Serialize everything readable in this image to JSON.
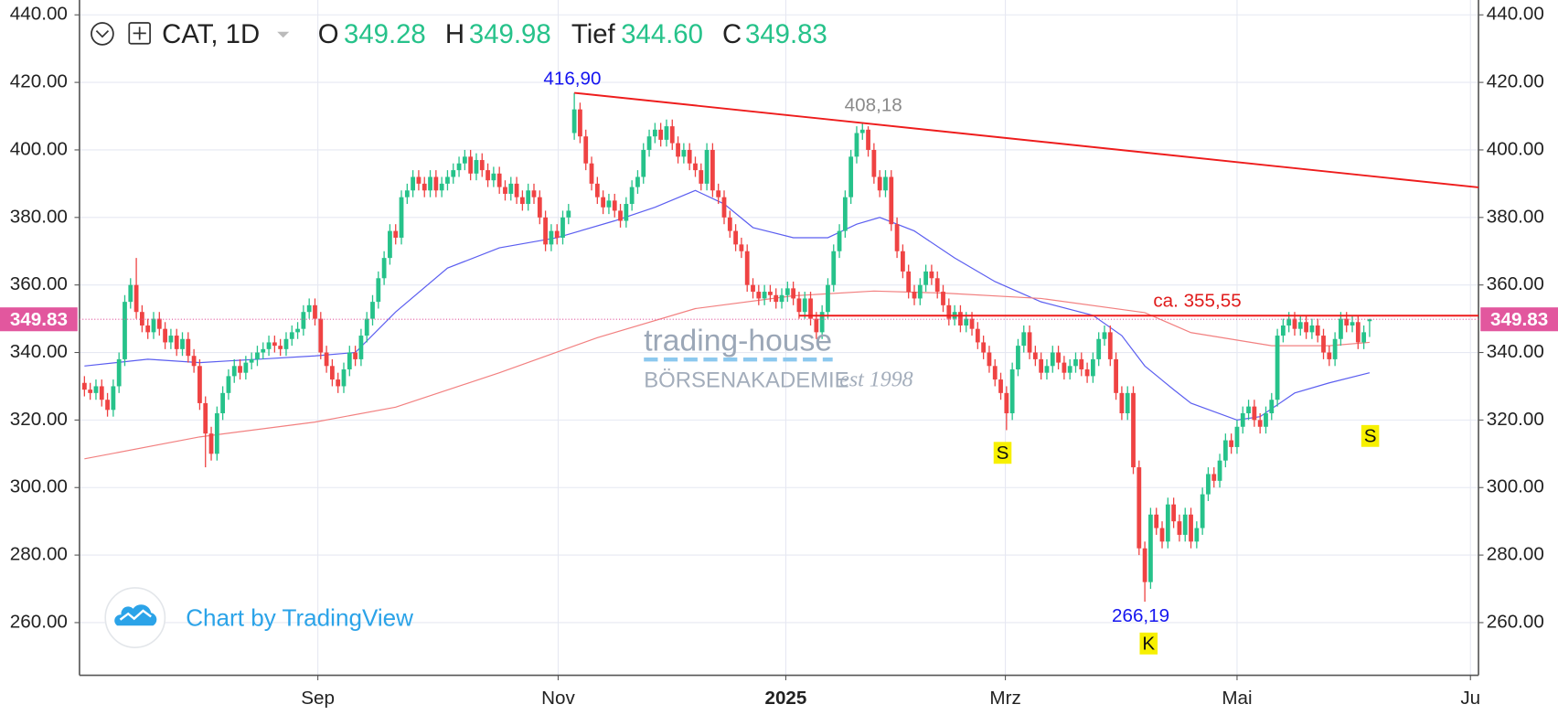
{
  "header": {
    "symbol": "CAT, 1D",
    "open_label": "O",
    "open": "349.28",
    "high_label": "H",
    "high": "349.98",
    "low_label": "Tief",
    "low": "344.60",
    "close_label": "C",
    "close": "349.83"
  },
  "watermark": {
    "brand": "trading-house",
    "academy": "BÖRSENAKADEMIE",
    "since": "est 1998"
  },
  "credit": "Chart by TradingView",
  "chart_data": {
    "type": "candlestick",
    "up_color": "#26c28a",
    "down_color": "#ef4343",
    "xlim": [
      -0.86,
      241.9
    ],
    "xticks": [
      {
        "value": 40.5,
        "label": "Sep"
      },
      {
        "value": 82.2,
        "label": "Nov"
      },
      {
        "value": 121.7,
        "label": "2025"
      },
      {
        "value": 159.8,
        "label": "Mrz"
      },
      {
        "value": 200,
        "label": "Mai"
      },
      {
        "value": 240.5,
        "label": "Ju"
      }
    ],
    "ylim": [
      244.4,
      444.4
    ],
    "yticks": [
      {
        "value": 260,
        "label": "260.00"
      },
      {
        "value": 280,
        "label": "280.00"
      },
      {
        "value": 300,
        "label": "300.00"
      },
      {
        "value": 320,
        "label": "320.00"
      },
      {
        "value": 340,
        "label": "340.00"
      },
      {
        "value": 360,
        "label": "360.00"
      },
      {
        "value": 380,
        "label": "380.00"
      },
      {
        "value": 400,
        "label": "400.00"
      },
      {
        "value": 420,
        "label": "420.00"
      },
      {
        "value": 440,
        "label": "440.00"
      }
    ],
    "grid": true,
    "open": [
      331,
      329,
      328,
      330,
      326,
      323,
      330,
      338,
      355,
      360,
      352,
      348,
      346,
      350,
      347,
      343,
      345,
      341,
      344,
      339,
      336,
      325,
      316,
      310,
      322,
      328,
      333,
      336,
      334,
      337,
      338,
      340,
      341,
      343,
      342,
      341,
      344,
      346,
      347,
      352,
      354,
      350,
      340,
      336,
      332,
      330,
      335,
      340,
      338,
      345,
      350,
      355,
      362,
      368,
      376,
      374,
      386,
      388,
      392,
      390,
      388,
      392,
      388,
      390,
      392,
      394,
      396,
      398,
      393,
      397,
      394,
      391,
      393,
      389,
      387,
      390,
      386,
      384,
      388,
      386,
      380,
      372,
      376,
      374,
      380,
      405,
      412,
      404,
      396,
      390,
      386,
      383,
      385,
      382,
      379,
      384,
      389,
      392,
      400,
      404,
      406,
      403,
      407,
      402,
      398,
      400,
      396,
      394,
      390,
      400,
      388,
      386,
      380,
      376,
      372,
      370,
      360,
      358,
      356,
      358,
      357,
      355,
      357,
      359,
      356,
      352,
      356,
      350,
      346,
      352,
      360,
      370,
      376,
      386,
      398,
      405,
      406,
      400,
      392,
      388,
      392,
      378,
      370,
      364,
      358,
      356,
      360,
      364,
      362,
      358,
      354,
      350,
      352,
      348,
      350,
      347,
      343,
      340,
      336,
      332,
      328,
      322,
      335,
      342,
      346,
      340,
      338,
      334,
      336,
      340,
      337,
      334,
      336,
      338,
      335,
      333,
      338,
      344,
      346,
      338,
      328,
      322,
      328,
      306,
      282,
      272,
      292,
      288,
      284,
      295,
      290,
      286,
      292,
      284,
      288,
      298,
      304,
      302,
      308,
      314,
      312,
      318,
      322,
      324,
      320,
      318,
      322,
      326,
      345,
      348,
      350,
      347,
      349,
      346,
      348,
      345,
      340,
      338,
      344,
      350,
      348,
      349,
      343,
      349.28
    ],
    "high": [
      333,
      331,
      332,
      332,
      328,
      332,
      340,
      357,
      362,
      368,
      354,
      350,
      352,
      352,
      349,
      347,
      347,
      346,
      346,
      341,
      338,
      327,
      318,
      324,
      330,
      335,
      338,
      338,
      339,
      340,
      342,
      343,
      345,
      345,
      344,
      346,
      348,
      349,
      354,
      356,
      356,
      352,
      342,
      338,
      334,
      337,
      342,
      342,
      347,
      352,
      357,
      364,
      370,
      378,
      378,
      388,
      390,
      394,
      394,
      392,
      394,
      394,
      392,
      394,
      396,
      398,
      400,
      400,
      399,
      399,
      396,
      395,
      395,
      391,
      392,
      392,
      388,
      390,
      390,
      388,
      382,
      378,
      378,
      382,
      384,
      416.9,
      414,
      406,
      398,
      392,
      388,
      387,
      387,
      384,
      386,
      391,
      394,
      402,
      406,
      408,
      408,
      409,
      409,
      404,
      402,
      402,
      398,
      396,
      402,
      402,
      390,
      388,
      382,
      378,
      374,
      372,
      362,
      360,
      360,
      360,
      359,
      359,
      361,
      361,
      358,
      358,
      358,
      352,
      354,
      362,
      372,
      378,
      388,
      400,
      407,
      408.18,
      407,
      402,
      394,
      394,
      394,
      380,
      372,
      366,
      360,
      362,
      366,
      366,
      364,
      360,
      356,
      354,
      354,
      352,
      352,
      349,
      345,
      342,
      338,
      334,
      330,
      337,
      344,
      348,
      348,
      342,
      340,
      338,
      342,
      342,
      339,
      338,
      340,
      340,
      337,
      340,
      346,
      348,
      348,
      340,
      330,
      330,
      330,
      308,
      284,
      294,
      294,
      290,
      297,
      297,
      292,
      294,
      294,
      290,
      300,
      306,
      306,
      310,
      316,
      316,
      320,
      324,
      326,
      326,
      322,
      324,
      328,
      347,
      350,
      352,
      352,
      351,
      351,
      350,
      350,
      347,
      342,
      346,
      352,
      352,
      351,
      351,
      348,
      349.98
    ],
    "low": [
      327,
      326,
      326,
      324,
      321,
      321,
      328,
      336,
      353,
      350,
      346,
      344,
      344,
      345,
      341,
      341,
      339,
      339,
      337,
      334,
      323,
      306,
      308,
      308,
      320,
      326,
      331,
      332,
      332,
      335,
      336,
      338,
      339,
      340,
      339,
      339,
      342,
      344,
      345,
      350,
      348,
      338,
      334,
      330,
      328,
      328,
      333,
      336,
      336,
      343,
      348,
      353,
      360,
      366,
      372,
      372,
      384,
      386,
      388,
      386,
      386,
      386,
      386,
      388,
      390,
      392,
      394,
      391,
      391,
      392,
      389,
      389,
      387,
      385,
      385,
      384,
      382,
      382,
      384,
      378,
      370,
      370,
      372,
      372,
      378,
      403,
      402,
      394,
      388,
      384,
      381,
      381,
      380,
      377,
      377,
      382,
      387,
      390,
      398,
      402,
      401,
      401,
      400,
      396,
      396,
      394,
      392,
      388,
      388,
      386,
      384,
      378,
      374,
      370,
      368,
      358,
      356,
      354,
      354,
      355,
      353,
      353,
      355,
      354,
      350,
      350,
      348,
      344,
      344,
      350,
      358,
      368,
      374,
      384,
      396,
      403,
      398,
      390,
      386,
      386,
      376,
      368,
      362,
      356,
      354,
      354,
      358,
      360,
      356,
      352,
      348,
      348,
      346,
      346,
      345,
      341,
      338,
      334,
      330,
      326,
      317,
      320,
      333,
      340,
      338,
      336,
      332,
      332,
      334,
      335,
      332,
      332,
      334,
      333,
      331,
      331,
      336,
      342,
      336,
      326,
      320,
      320,
      304,
      280,
      266.19,
      270,
      286,
      282,
      282,
      288,
      284,
      284,
      282,
      282,
      286,
      296,
      300,
      300,
      306,
      310,
      310,
      316,
      320,
      318,
      316,
      316,
      320,
      324,
      343,
      346,
      345,
      345,
      344,
      344,
      343,
      338,
      336,
      336,
      342,
      346,
      346,
      341,
      341,
      344.6
    ],
    "close": [
      329,
      328,
      330,
      326,
      323,
      330,
      338,
      355,
      360,
      352,
      348,
      346,
      350,
      347,
      343,
      345,
      341,
      344,
      339,
      336,
      325,
      316,
      310,
      322,
      328,
      333,
      336,
      334,
      337,
      338,
      340,
      341,
      343,
      342,
      341,
      344,
      346,
      347,
      352,
      354,
      350,
      340,
      336,
      332,
      330,
      335,
      340,
      338,
      345,
      350,
      355,
      362,
      368,
      376,
      374,
      386,
      388,
      392,
      390,
      388,
      392,
      388,
      390,
      392,
      394,
      396,
      398,
      393,
      397,
      394,
      391,
      393,
      389,
      387,
      390,
      386,
      384,
      388,
      386,
      380,
      372,
      376,
      374,
      380,
      382,
      412,
      404,
      396,
      390,
      386,
      383,
      385,
      382,
      379,
      384,
      389,
      392,
      400,
      404,
      406,
      403,
      407,
      402,
      398,
      400,
      396,
      394,
      390,
      400,
      388,
      386,
      380,
      376,
      372,
      370,
      360,
      358,
      356,
      358,
      357,
      355,
      357,
      359,
      356,
      352,
      356,
      350,
      346,
      352,
      360,
      370,
      376,
      386,
      398,
      405,
      406,
      400,
      392,
      388,
      392,
      378,
      370,
      364,
      358,
      356,
      360,
      364,
      362,
      358,
      354,
      350,
      352,
      348,
      350,
      347,
      343,
      340,
      336,
      332,
      328,
      322,
      335,
      342,
      346,
      340,
      338,
      334,
      336,
      340,
      337,
      334,
      336,
      338,
      335,
      333,
      338,
      344,
      346,
      338,
      328,
      322,
      328,
      306,
      282,
      272,
      292,
      288,
      284,
      295,
      290,
      286,
      292,
      284,
      288,
      298,
      304,
      302,
      308,
      314,
      312,
      318,
      322,
      324,
      320,
      318,
      322,
      326,
      345,
      348,
      350,
      347,
      349,
      346,
      348,
      345,
      340,
      338,
      344,
      350,
      348,
      349,
      343,
      346,
      349.83
    ],
    "lines": [
      {
        "color": "#5b5ef0",
        "x": [
          0,
          11,
          20,
          30,
          40,
          47,
          54,
          63,
          72,
          82,
          92,
          99,
          106,
          111,
          116,
          123,
          129,
          134,
          138,
          144,
          151,
          158,
          166,
          175,
          180,
          184,
          189,
          192,
          200,
          204,
          210,
          216,
          223
        ],
        "values": [
          336,
          338,
          337,
          338,
          339,
          340,
          352,
          365,
          371,
          374,
          379,
          383,
          388,
          384,
          377,
          374,
          374,
          378,
          380,
          376,
          368,
          361,
          355,
          351,
          345,
          336,
          329,
          325,
          320,
          321,
          328,
          331,
          334
        ]
      },
      {
        "color": "#f28080",
        "x": [
          0,
          20,
          40,
          54,
          72,
          89,
          106,
          123,
          137,
          149,
          166,
          184,
          192,
          206,
          216,
          223
        ],
        "values": [
          308.5,
          315,
          319.4,
          323.8,
          334,
          344.4,
          353,
          356.8,
          358.2,
          357.6,
          356,
          351.8,
          345.9,
          342,
          342,
          343
        ]
      }
    ],
    "trendlines": [
      {
        "color": "#ee1c1c",
        "x": [
          85,
          241.9
        ],
        "values": [
          416.9,
          388.9
        ]
      },
      {
        "color": "#ee1c1c",
        "x": [
          124,
          241.9
        ],
        "values": [
          350.9,
          350.9
        ]
      }
    ],
    "annotations": [
      {
        "text": "416,90",
        "color": "#1515f0"
      },
      {
        "text": "408,18",
        "color": "#8a8a8a"
      },
      {
        "text": "266,19",
        "color": "#1515f0"
      },
      {
        "text": "ca. 355,55",
        "color": "#e01c1c"
      },
      {
        "text": "S",
        "color": "#111111"
      },
      {
        "text": "S",
        "color": "#111111"
      },
      {
        "text": "K",
        "color": "#111111"
      }
    ],
    "price_tag_color": "#e2579e"
  }
}
